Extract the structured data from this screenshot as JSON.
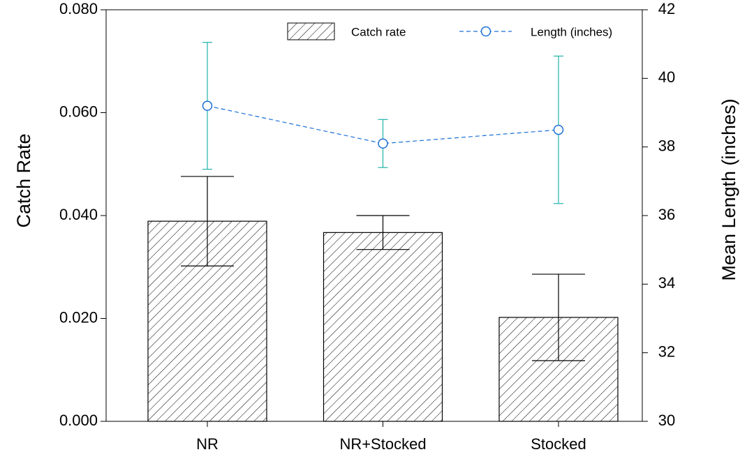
{
  "chart_data": {
    "type": "bar_line",
    "categories": [
      "NR",
      "NR+Stocked",
      "Stocked"
    ],
    "y_label": "Catch Rate",
    "y2_label": "Mean Length (inches)",
    "ylim": [
      0,
      0.08
    ],
    "yticks": [
      {
        "value": 0,
        "label": "0.000"
      },
      {
        "value": 0.02,
        "label": "0.020"
      },
      {
        "value": 0.04,
        "label": "0.040"
      },
      {
        "value": 0.06,
        "label": "0.060"
      },
      {
        "value": 0.08,
        "label": "0.080"
      }
    ],
    "y2lim": [
      30,
      42
    ],
    "y2ticks": [
      30,
      32,
      34,
      36,
      38,
      40,
      42
    ],
    "series": [
      {
        "name": "Catch rate",
        "type": "bar",
        "color": "#000000",
        "hatch": true,
        "values": [
          0.0389,
          0.0367,
          0.0202
        ],
        "errors": [
          0.0087,
          0.0033,
          0.0084
        ]
      },
      {
        "name": "Length (inches)",
        "type": "line",
        "axis": "y2",
        "color": "#1a6fd6",
        "error_color": "#20b2aa",
        "dashed": true,
        "marker": "open-circle",
        "values": [
          39.2,
          38.1,
          38.5
        ],
        "errors": [
          1.85,
          0.7,
          2.15
        ]
      }
    ]
  }
}
